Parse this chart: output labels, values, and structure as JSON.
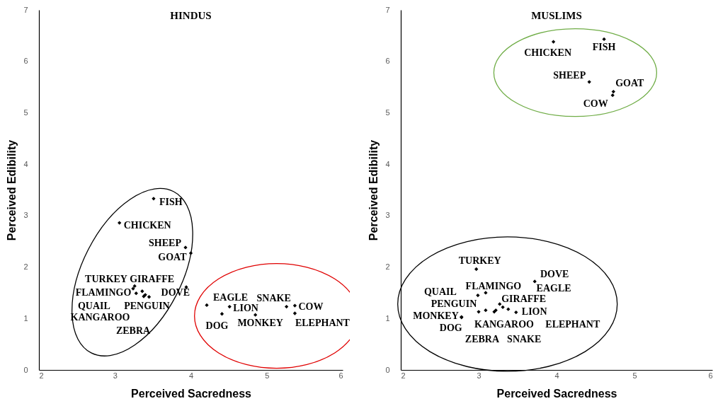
{
  "chart_data": [
    {
      "type": "scatter",
      "title": "HINDUS",
      "xlabel": "Perceived Sacredness",
      "ylabel": "Perceived Edibility",
      "xlim": [
        2,
        6
      ],
      "xticks": [
        2,
        3,
        4,
        5,
        6
      ],
      "ylim": [
        0,
        7
      ],
      "yticks": [
        0,
        1,
        2,
        3,
        4,
        5,
        6,
        7
      ],
      "marker": "diamond",
      "color": "#000000",
      "x": [
        3.51,
        3.06,
        3.93,
        4.0,
        3.24,
        3.26,
        3.28,
        3.36,
        3.4,
        3.45,
        3.38,
        3.94,
        4.21,
        4.51,
        4.41,
        4.85,
        5.26,
        5.37,
        5.37
      ],
      "values": [
        3.33,
        2.86,
        2.38,
        2.27,
        1.58,
        1.63,
        1.49,
        1.53,
        1.46,
        1.42,
        1.43,
        1.61,
        1.26,
        1.23,
        1.09,
        1.07,
        1.23,
        1.25,
        1.1
      ],
      "annotations": [
        "FISH",
        "CHICKEN",
        "SHEEP",
        "GOAT",
        "TURKEY",
        "GIRAFFE",
        "FLAMINGO",
        "QUAIL",
        "PENGUIN",
        "KANGAROO",
        "ZEBRA",
        "DOVE",
        "EAGLE",
        "LION",
        "DOG",
        "MONKEY",
        "SNAKE",
        "COW",
        "ELEPHANT"
      ]
    },
    {
      "type": "scatter",
      "title": "MUSLIMS",
      "xlabel": "Perceived Sacredness",
      "ylabel": "Perceived Edibility",
      "xlim": [
        2,
        6
      ],
      "xticks": [
        2,
        3,
        4,
        5,
        6
      ],
      "ylim": [
        0,
        7
      ],
      "yticks": [
        0,
        1,
        2,
        3,
        4,
        5,
        6,
        7
      ],
      "marker": "diamond",
      "color": "#000000",
      "x": [
        3.96,
        4.61,
        4.42,
        4.73,
        4.72,
        2.97,
        3.72,
        2.99,
        3.09,
        3.31,
        3.0,
        3.27,
        2.78,
        3.48,
        2.78,
        3.2,
        3.38,
        3.09,
        3.22
      ],
      "values": [
        6.38,
        6.43,
        5.6,
        5.41,
        5.34,
        1.96,
        1.72,
        1.45,
        1.5,
        1.22,
        1.13,
        1.28,
        1.03,
        1.12,
        1.02,
        1.13,
        1.18,
        1.16,
        1.16
      ],
      "annotations": [
        "CHICKEN",
        "FISH",
        "SHEEP",
        "GOAT",
        "COW",
        "TURKEY",
        "DOVE",
        "QUAIL",
        "FLAMINGO",
        "EAGLE",
        "PENGUIN",
        "GIRAFFE",
        "MONKEY",
        "LION",
        "DOG",
        "KANGAROO",
        "ELEPHANT",
        "ZEBRA",
        "SNAKE"
      ]
    }
  ]
}
